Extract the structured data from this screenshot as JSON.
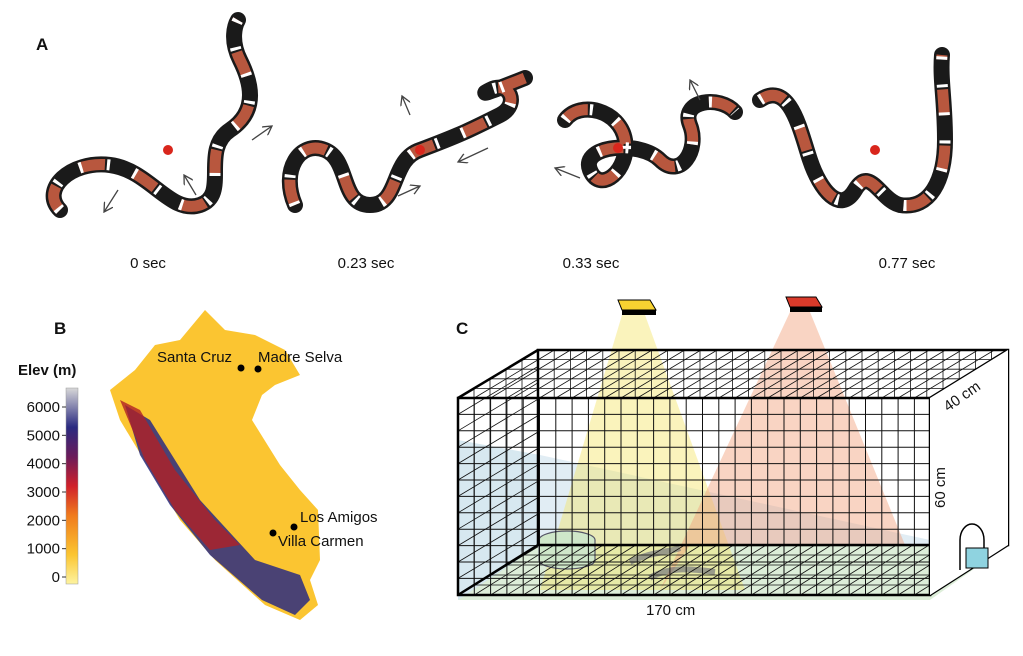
{
  "panel_a": {
    "label": "A",
    "times": [
      "0 sec",
      "0.23 sec",
      "0.33 sec",
      "0.77 sec"
    ]
  },
  "panel_b": {
    "label": "B",
    "colorbar": {
      "title": "Elev (m)",
      "ticks": [
        0,
        1000,
        2000,
        3000,
        4000,
        5000,
        6000
      ]
    },
    "sites": [
      "Santa Cruz",
      "Madre Selva",
      "Los Amigos",
      "Villa Carmen"
    ]
  },
  "panel_c": {
    "label": "C",
    "depth": "40 cm",
    "height": "60 cm",
    "length": "170 cm"
  }
}
